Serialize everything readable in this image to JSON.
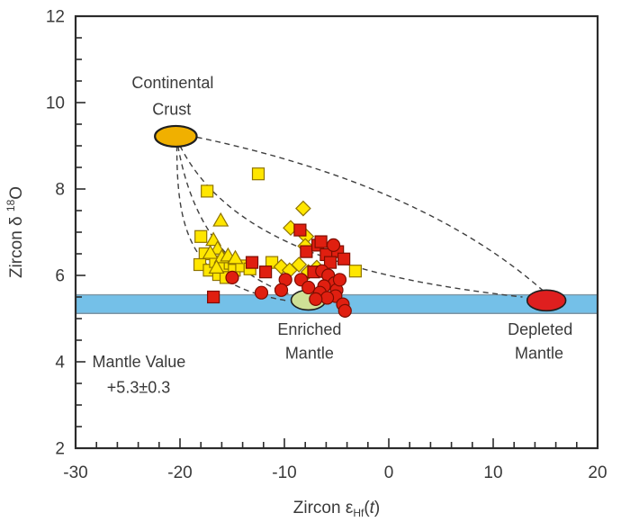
{
  "chart_data": {
    "type": "scatter",
    "title": "",
    "xlabel_parts": {
      "prefix": "Zircon ",
      "epsilon": "ε",
      "sub": "Hf",
      "open": "(",
      "t": "t",
      "close": ")"
    },
    "ylabel_parts": {
      "prefix": "Zircon ",
      "delta": "δ",
      "sup": "18",
      "suffix": "O"
    },
    "x_axis": {
      "min": -30,
      "max": 20,
      "major_ticks": [
        -30,
        -20,
        -10,
        0,
        10,
        20
      ],
      "minor_step": 2
    },
    "y_axis": {
      "min": 2,
      "max": 12,
      "major_ticks": [
        2,
        4,
        6,
        8,
        10,
        12
      ],
      "minor_step": 0.5
    },
    "frame_color": "#2b2b2b",
    "mantle_band": {
      "y_from": 5.12,
      "y_to": 5.55,
      "fill": "#74c0e8",
      "edge": "#7e95a3",
      "value_label": "+5.3±0.3"
    },
    "series": [
      {
        "name": "yellow-squares",
        "marker": "square",
        "fill": "#ffe600",
        "stroke": "#8f7400",
        "points": [
          [
            -12.5,
            8.35
          ],
          [
            -17.4,
            7.95
          ],
          [
            -18.0,
            6.9
          ],
          [
            -17.6,
            6.5
          ],
          [
            -18.1,
            6.25
          ],
          [
            -17.2,
            6.12
          ],
          [
            -16.6,
            6.32
          ],
          [
            -16.3,
            6.02
          ],
          [
            -15.8,
            6.22
          ],
          [
            -15.2,
            6.28
          ],
          [
            -15.6,
            5.95
          ],
          [
            -14.8,
            6.12
          ],
          [
            -14.1,
            6.22
          ],
          [
            -13.3,
            6.15
          ],
          [
            -11.2,
            6.3
          ],
          [
            -3.2,
            6.1
          ]
        ]
      },
      {
        "name": "yellow-triangles",
        "marker": "triangle",
        "fill": "#ffe600",
        "stroke": "#8f7400",
        "points": [
          [
            -16.1,
            7.27
          ],
          [
            -16.8,
            6.82
          ],
          [
            -16.4,
            6.62
          ],
          [
            -17.1,
            6.52
          ],
          [
            -16.0,
            6.42
          ],
          [
            -15.4,
            6.46
          ],
          [
            -14.7,
            6.4
          ],
          [
            -16.5,
            6.18
          ]
        ]
      },
      {
        "name": "yellow-diamonds",
        "marker": "diamond",
        "fill": "#ffe600",
        "stroke": "#8f7400",
        "points": [
          [
            -8.2,
            7.55
          ],
          [
            -9.4,
            7.1
          ],
          [
            -7.9,
            6.9
          ],
          [
            -8.0,
            6.68
          ],
          [
            -10.3,
            6.2
          ],
          [
            -9.5,
            6.12
          ],
          [
            -8.6,
            6.25
          ],
          [
            -7.7,
            6.08
          ],
          [
            -6.9,
            6.18
          ]
        ]
      },
      {
        "name": "red-squares",
        "marker": "square",
        "fill": "#e01f10",
        "stroke": "#7c0d00",
        "points": [
          [
            -13.1,
            6.3
          ],
          [
            -11.8,
            6.08
          ],
          [
            -16.8,
            5.5
          ],
          [
            -8.5,
            7.05
          ],
          [
            -7.9,
            6.55
          ],
          [
            -6.8,
            6.7
          ],
          [
            -6.0,
            6.48
          ],
          [
            -4.9,
            6.55
          ],
          [
            -4.3,
            6.38
          ],
          [
            -7.2,
            6.08
          ],
          [
            -5.6,
            6.3
          ],
          [
            -6.5,
            6.78
          ]
        ]
      },
      {
        "name": "red-circles",
        "marker": "circle",
        "fill": "#e01f10",
        "stroke": "#7c0d00",
        "points": [
          [
            -15.0,
            5.95
          ],
          [
            -12.2,
            5.6
          ],
          [
            -9.9,
            5.9
          ],
          [
            -8.4,
            5.9
          ],
          [
            -10.3,
            5.66
          ],
          [
            -7.7,
            5.72
          ],
          [
            -6.4,
            6.1
          ],
          [
            -5.8,
            6.0
          ],
          [
            -5.3,
            6.7
          ],
          [
            -5.2,
            5.82
          ],
          [
            -6.2,
            5.75
          ],
          [
            -5.0,
            5.66
          ],
          [
            -6.6,
            5.6
          ],
          [
            -5.1,
            5.52
          ],
          [
            -4.4,
            5.33
          ],
          [
            -4.7,
            5.9
          ],
          [
            -5.9,
            5.48
          ],
          [
            -7.0,
            5.45
          ],
          [
            -4.2,
            5.18
          ]
        ]
      }
    ],
    "ellipses": [
      {
        "name": "continental-crust",
        "x": -20.4,
        "y": 9.22,
        "rx": 2.0,
        "ry": 0.24,
        "fill": "#f0b000",
        "stroke": "#1f1f1f",
        "stroke_width": 2.2
      },
      {
        "name": "enriched-mantle",
        "x": -7.7,
        "y": 5.43,
        "rx": 1.65,
        "ry": 0.23,
        "fill": "#cfe096",
        "stroke": "#1f1f1f",
        "stroke_width": 1.6
      },
      {
        "name": "depleted-mantle",
        "x": 15.1,
        "y": 5.42,
        "rx": 1.85,
        "ry": 0.24,
        "fill": "#df1f1f",
        "stroke": "#1f1f1f",
        "stroke_width": 1.6
      }
    ],
    "curves": [
      {
        "name": "mixing-curve-top",
        "type": "q",
        "pts": [
          [
            -18.4,
            9.2
          ],
          [
            3.3,
            8.1
          ],
          [
            14.9,
            5.62
          ]
        ]
      },
      {
        "name": "mixing-curve-mid",
        "type": "c",
        "pts": [
          [
            -20.0,
            9.0
          ],
          [
            -15.3,
            6.75
          ],
          [
            -2.8,
            5.92
          ],
          [
            12.8,
            5.5
          ]
        ]
      },
      {
        "name": "mixing-curve-enriched-upper",
        "type": "c",
        "pts": [
          [
            -20.2,
            9.0
          ],
          [
            -19.0,
            7.38
          ],
          [
            -15.9,
            6.08
          ],
          [
            -9.3,
            5.55
          ]
        ]
      },
      {
        "name": "mixing-curve-enriched-lower",
        "type": "c",
        "pts": [
          [
            -20.3,
            9.0
          ],
          [
            -20.3,
            7.06
          ],
          [
            -19.1,
            5.79
          ],
          [
            -9.9,
            5.42
          ]
        ]
      }
    ],
    "labels": [
      {
        "name": "continental-crust-label",
        "anchor": "middle",
        "lines": [
          {
            "t": "Continental",
            "x": -20.7,
            "y": 10.33
          },
          {
            "t": "Crust",
            "x": -20.8,
            "y": 9.72
          }
        ]
      },
      {
        "name": "enriched-mantle-label",
        "anchor": "middle",
        "lines": [
          {
            "t": "Enriched",
            "x": -7.6,
            "y": 4.63
          },
          {
            "t": "Mantle",
            "x": -7.6,
            "y": 4.07
          }
        ]
      },
      {
        "name": "depleted-mantle-label",
        "anchor": "middle",
        "lines": [
          {
            "t": "Depleted",
            "x": 14.5,
            "y": 4.63
          },
          {
            "t": "Mantle",
            "x": 14.4,
            "y": 4.07
          }
        ]
      },
      {
        "name": "mantle-value-label",
        "anchor": "start",
        "lines": [
          {
            "t": "Mantle Value",
            "x": -28.4,
            "y": 3.88
          },
          {
            "t": "+5.3±0.3",
            "x": -27.0,
            "y": 3.28
          }
        ]
      }
    ]
  }
}
